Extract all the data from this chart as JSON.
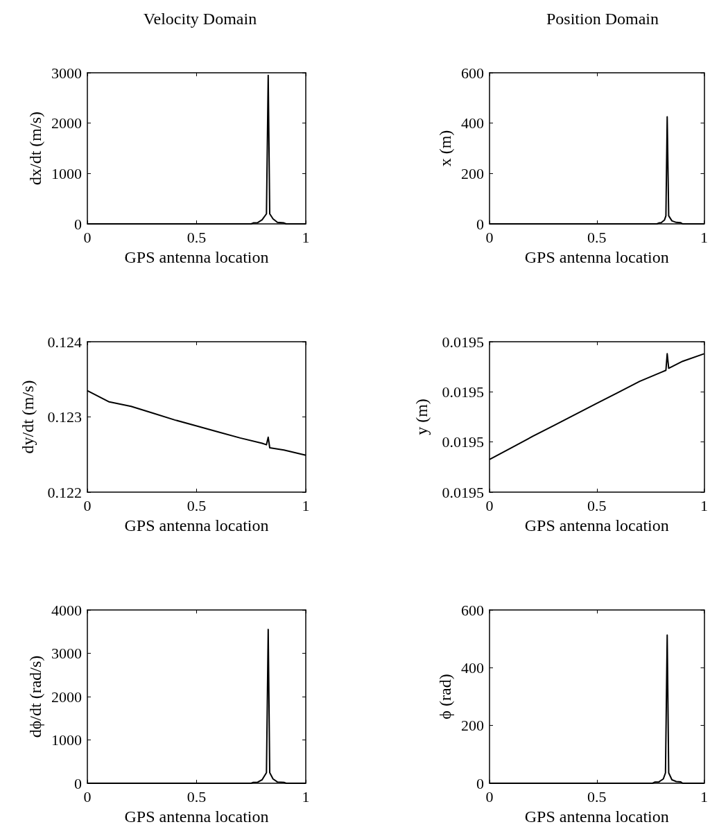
{
  "chart_data": [
    {
      "type": "line",
      "title": "Velocity Domain",
      "xlabel": "GPS antenna location",
      "ylabel": "dx/dt (m/s)",
      "color": "#000000",
      "xlim": [
        0,
        1
      ],
      "xticks": [
        0,
        0.5,
        1
      ],
      "ylim": [
        0,
        3000
      ],
      "yticks": [
        0,
        1000,
        2000,
        3000
      ],
      "x": [
        0,
        0.75,
        0.76,
        0.78,
        0.8,
        0.82,
        0.828,
        0.835,
        0.85,
        0.87,
        0.9,
        0.91,
        1
      ],
      "values": [
        0,
        0,
        20,
        25,
        80,
        200,
        2950,
        200,
        100,
        30,
        20,
        0,
        0
      ]
    },
    {
      "type": "line",
      "title": "Position Domain",
      "xlabel": "GPS antenna location",
      "ylabel": "x (m)",
      "color": "#000000",
      "xlim": [
        0,
        1
      ],
      "xticks": [
        0,
        0.5,
        1
      ],
      "ylim": [
        0,
        600
      ],
      "yticks": [
        0,
        200,
        400,
        600
      ],
      "x": [
        0,
        0.78,
        0.79,
        0.8,
        0.815,
        0.822,
        0.828,
        0.835,
        0.85,
        0.87,
        0.89,
        0.9,
        1
      ],
      "values": [
        0,
        0,
        4,
        5,
        15,
        32,
        425,
        32,
        12,
        6,
        5,
        0,
        0
      ]
    },
    {
      "type": "line",
      "xlabel": "GPS antenna location",
      "ylabel": "dy/dt (m/s)",
      "color": "#000000",
      "xlim": [
        0,
        1
      ],
      "xticks": [
        0,
        0.5,
        1
      ],
      "ylim": [
        0.122,
        0.124
      ],
      "yticks": [
        0.122,
        0.123,
        0.124
      ],
      "x": [
        0,
        0.1,
        0.2,
        0.3,
        0.4,
        0.5,
        0.6,
        0.7,
        0.8,
        0.82,
        0.828,
        0.835,
        0.9,
        1
      ],
      "values": [
        0.12335,
        0.1232,
        0.12314,
        0.12305,
        0.12296,
        0.12288,
        0.1228,
        0.12272,
        0.12265,
        0.12263,
        0.12273,
        0.12259,
        0.12256,
        0.12249
      ]
    },
    {
      "type": "line",
      "xlabel": "GPS antenna location",
      "ylabel": "y (m)",
      "color": "#000000",
      "xlim": [
        0,
        1
      ],
      "xticks": [
        0,
        0.5,
        1
      ],
      "ylim": [
        0.01948,
        0.01951
      ],
      "yticks": [
        {
          "value": 0.01948,
          "label": "0.0195"
        },
        {
          "value": 0.01949,
          "label": "0.0195"
        },
        {
          "value": 0.0195,
          "label": "0.0195"
        },
        {
          "value": 0.01951,
          "label": "0.0195"
        }
      ],
      "x": [
        0,
        0.1,
        0.2,
        0.3,
        0.4,
        0.5,
        0.6,
        0.7,
        0.8,
        0.822,
        0.828,
        0.835,
        0.9,
        1
      ],
      "values": [
        0.0194865,
        0.0194888,
        0.0194911,
        0.0194933,
        0.0194955,
        0.0194977,
        0.0194999,
        0.0195021,
        0.0195039,
        0.0195043,
        0.0195076,
        0.0195047,
        0.0195061,
        0.0195076
      ]
    },
    {
      "type": "line",
      "xlabel": "GPS antenna location",
      "ylabel": "dϕ/dt (rad/s)",
      "color": "#000000",
      "xlim": [
        0,
        1
      ],
      "xticks": [
        0,
        0.5,
        1
      ],
      "ylim": [
        0,
        4000
      ],
      "yticks": [
        0,
        1000,
        2000,
        3000,
        4000
      ],
      "x": [
        0,
        0.75,
        0.76,
        0.78,
        0.8,
        0.82,
        0.828,
        0.835,
        0.85,
        0.87,
        0.9,
        0.91,
        1
      ],
      "values": [
        0,
        0,
        20,
        25,
        80,
        243,
        3550,
        243,
        100,
        30,
        20,
        0,
        0
      ]
    },
    {
      "type": "line",
      "xlabel": "GPS antenna location",
      "ylabel": "ϕ (rad)",
      "color": "#000000",
      "xlim": [
        0,
        1
      ],
      "xticks": [
        0,
        0.5,
        1
      ],
      "ylim": [
        0,
        600
      ],
      "yticks": [
        0,
        200,
        400,
        600
      ],
      "x": [
        0,
        0.76,
        0.77,
        0.79,
        0.81,
        0.82,
        0.828,
        0.835,
        0.85,
        0.87,
        0.89,
        0.9,
        1
      ],
      "values": [
        0,
        0,
        4,
        5,
        15,
        36,
        513,
        36,
        12,
        6,
        5,
        0,
        0
      ]
    }
  ]
}
